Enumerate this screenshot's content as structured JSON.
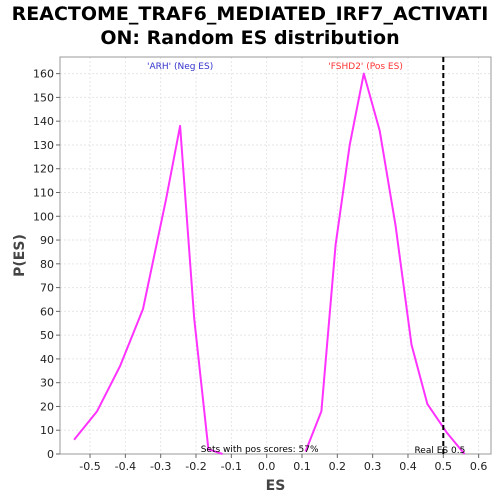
{
  "title_line1": "REACTOME_TRAF6_MEDIATED_IRF7_ACTIVATI",
  "title_line2": "ON: Random ES distribution",
  "chart_data": {
    "type": "line",
    "title": "REACTOME_TRAF6_MEDIATED_IRF7_ACTIVATION: Random ES distribution",
    "xlabel": "ES",
    "ylabel": "P(ES)",
    "xlim": [
      -0.585,
      0.635
    ],
    "ylim": [
      0,
      167
    ],
    "xticks": [
      -0.5,
      -0.4,
      -0.3,
      -0.2,
      -0.1,
      0.0,
      0.1,
      0.2,
      0.3,
      0.4,
      0.5,
      0.6
    ],
    "xtick_labels": [
      "-0.5",
      "-0.4",
      "-0.3",
      "-0.2",
      "-0.1",
      "0.0",
      "0.1",
      "0.2",
      "0.3",
      "0.4",
      "0.5",
      "0.6"
    ],
    "yticks": [
      0,
      10,
      20,
      30,
      40,
      50,
      60,
      70,
      80,
      90,
      100,
      110,
      120,
      130,
      140,
      150,
      160
    ],
    "ytick_labels": [
      "0",
      "10",
      "20",
      "30",
      "40",
      "50",
      "60",
      "70",
      "80",
      "90",
      "100",
      "110",
      "120",
      "130",
      "140",
      "150",
      "160"
    ],
    "grid": true,
    "series": [
      {
        "color": "#ff33ff",
        "x": [
          -0.545,
          -0.48,
          -0.415,
          -0.35,
          -0.285,
          -0.245,
          -0.205,
          -0.165,
          -0.125
        ],
        "y": [
          6,
          18,
          37,
          61,
          107,
          138,
          57,
          2,
          0
        ]
      },
      {
        "color": "#ff33ff",
        "x": [
          0.11,
          0.155,
          0.195,
          0.235,
          0.275,
          0.32,
          0.365,
          0.41,
          0.455,
          0.51,
          0.56
        ],
        "y": [
          1,
          18,
          88,
          130,
          160,
          136,
          96,
          46,
          21,
          9,
          0
        ]
      }
    ],
    "real_es": 0.5,
    "annotations": {
      "neg_label": "'ARH' (Neg ES)",
      "neg_color": "#3333cc",
      "pos_label": "'FSHD2' (Pos ES)",
      "pos_color": "#ff3333",
      "pos_scores": "Sets with pos scores: 57%",
      "real_es_label": "Real ES 0.5"
    }
  }
}
